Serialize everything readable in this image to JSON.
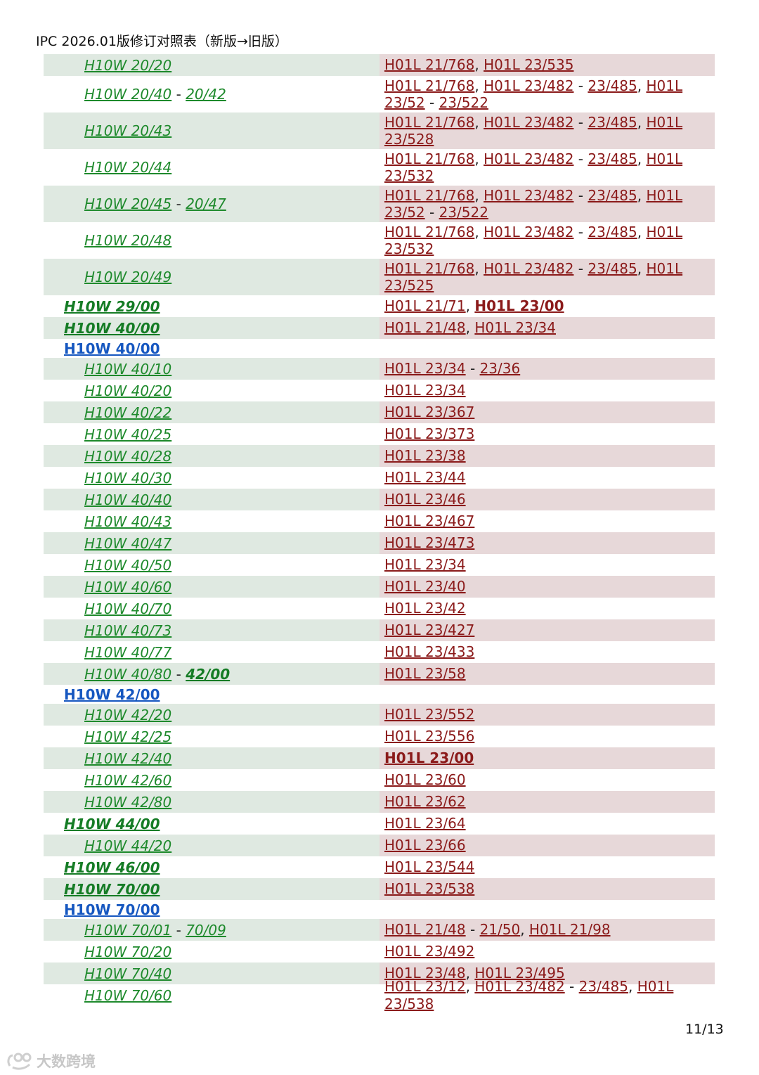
{
  "header": {
    "title": "IPC 2026.01版修订对照表（新版→旧版）"
  },
  "footer": {
    "page": "11/13",
    "watermark": "大数跨境"
  },
  "rows": [
    {
      "h": 31,
      "lv": 1,
      "new": [
        {
          "t": "H10W 20/20",
          "k": "n"
        }
      ],
      "old": [
        {
          "t": "H01L 21/768",
          "k": "l"
        },
        {
          "t": ", ",
          "k": "s"
        },
        {
          "t": "H01L 23/535",
          "k": "l"
        }
      ]
    },
    {
      "h": 52,
      "lv": 1,
      "new": [
        {
          "t": "H10W 20/40",
          "k": "n"
        },
        {
          "t": " - ",
          "k": "s"
        },
        {
          "t": "20/42",
          "k": "n"
        }
      ],
      "old": [
        {
          "t": "H01L 21/768",
          "k": "l"
        },
        {
          "t": ", ",
          "k": "s"
        },
        {
          "t": "H01L 23/482",
          "k": "l"
        },
        {
          "t": " - ",
          "k": "s"
        },
        {
          "t": "23/485",
          "k": "l"
        },
        {
          "t": ", ",
          "k": "s"
        },
        {
          "t": "H01L 23/52",
          "k": "l"
        },
        {
          "t": " - ",
          "k": "s"
        },
        {
          "t": "23/522",
          "k": "l"
        }
      ]
    },
    {
      "h": 52,
      "lv": 1,
      "new": [
        {
          "t": "H10W 20/43",
          "k": "n"
        }
      ],
      "old": [
        {
          "t": "H01L 21/768",
          "k": "l"
        },
        {
          "t": ", ",
          "k": "s"
        },
        {
          "t": "H01L 23/482",
          "k": "l"
        },
        {
          "t": " - ",
          "k": "s"
        },
        {
          "t": "23/485",
          "k": "l"
        },
        {
          "t": ", ",
          "k": "s"
        },
        {
          "t": "H01L 23/528",
          "k": "l"
        }
      ]
    },
    {
      "h": 52,
      "lv": 1,
      "new": [
        {
          "t": "H10W 20/44",
          "k": "n"
        }
      ],
      "old": [
        {
          "t": "H01L 21/768",
          "k": "l"
        },
        {
          "t": ", ",
          "k": "s"
        },
        {
          "t": "H01L 23/482",
          "k": "l"
        },
        {
          "t": " - ",
          "k": "s"
        },
        {
          "t": "23/485",
          "k": "l"
        },
        {
          "t": ", ",
          "k": "s"
        },
        {
          "t": "H01L 23/532",
          "k": "l"
        }
      ]
    },
    {
      "h": 52,
      "lv": 1,
      "new": [
        {
          "t": "H10W 20/45",
          "k": "n"
        },
        {
          "t": " - ",
          "k": "s"
        },
        {
          "t": "20/47",
          "k": "n"
        }
      ],
      "old": [
        {
          "t": "H01L 21/768",
          "k": "l"
        },
        {
          "t": ", ",
          "k": "s"
        },
        {
          "t": "H01L 23/482",
          "k": "l"
        },
        {
          "t": " - ",
          "k": "s"
        },
        {
          "t": "23/485",
          "k": "l"
        },
        {
          "t": ", ",
          "k": "s"
        },
        {
          "t": "H01L 23/52",
          "k": "l"
        },
        {
          "t": " - ",
          "k": "s"
        },
        {
          "t": "23/522",
          "k": "l"
        }
      ]
    },
    {
      "h": 52,
      "lv": 1,
      "new": [
        {
          "t": "H10W 20/48",
          "k": "n"
        }
      ],
      "old": [
        {
          "t": "H01L 21/768",
          "k": "l"
        },
        {
          "t": ", ",
          "k": "s"
        },
        {
          "t": "H01L 23/482",
          "k": "l"
        },
        {
          "t": " - ",
          "k": "s"
        },
        {
          "t": "23/485",
          "k": "l"
        },
        {
          "t": ", ",
          "k": "s"
        },
        {
          "t": "H01L 23/532",
          "k": "l"
        }
      ]
    },
    {
      "h": 52,
      "lv": 1,
      "new": [
        {
          "t": "H10W 20/49",
          "k": "n"
        }
      ],
      "old": [
        {
          "t": "H01L 21/768",
          "k": "l"
        },
        {
          "t": ", ",
          "k": "s"
        },
        {
          "t": "H01L 23/482",
          "k": "l"
        },
        {
          "t": " - ",
          "k": "s"
        },
        {
          "t": "23/485",
          "k": "l"
        },
        {
          "t": ", ",
          "k": "s"
        },
        {
          "t": "H01L 23/525",
          "k": "l"
        }
      ]
    },
    {
      "h": 31,
      "lv": 0,
      "new": [
        {
          "t": "H10W 29/00",
          "k": "nb"
        }
      ],
      "old": [
        {
          "t": "H01L 21/71",
          "k": "l"
        },
        {
          "t": ", ",
          "k": "s"
        },
        {
          "t": "H01L 23/00",
          "k": "lb"
        }
      ]
    },
    {
      "h": 31,
      "lv": 0,
      "new": [
        {
          "t": "H10W 40/00",
          "k": "nb"
        }
      ],
      "old": [
        {
          "t": "H01L 21/48",
          "k": "l"
        },
        {
          "t": ", ",
          "k": "s"
        },
        {
          "t": "H01L 23/34",
          "k": "l"
        }
      ]
    },
    {
      "h": 27,
      "lv": 0,
      "hdr": true,
      "new": [
        {
          "t": "H10W 40/00",
          "k": "h"
        }
      ],
      "old": []
    },
    {
      "h": 31,
      "lv": 1,
      "new": [
        {
          "t": "H10W 40/10",
          "k": "n"
        }
      ],
      "old": [
        {
          "t": "H01L 23/34",
          "k": "l"
        },
        {
          "t": " - ",
          "k": "s"
        },
        {
          "t": "23/36",
          "k": "l"
        }
      ]
    },
    {
      "h": 31,
      "lv": 1,
      "new": [
        {
          "t": "H10W 40/20",
          "k": "n"
        }
      ],
      "old": [
        {
          "t": "H01L 23/34",
          "k": "l"
        }
      ]
    },
    {
      "h": 31,
      "lv": 1,
      "new": [
        {
          "t": "H10W 40/22",
          "k": "n"
        }
      ],
      "old": [
        {
          "t": "H01L 23/367",
          "k": "l"
        }
      ]
    },
    {
      "h": 31,
      "lv": 1,
      "new": [
        {
          "t": "H10W 40/25",
          "k": "n"
        }
      ],
      "old": [
        {
          "t": "H01L 23/373",
          "k": "l"
        }
      ]
    },
    {
      "h": 31,
      "lv": 1,
      "new": [
        {
          "t": "H10W 40/28",
          "k": "n"
        }
      ],
      "old": [
        {
          "t": "H01L 23/38",
          "k": "l"
        }
      ]
    },
    {
      "h": 31,
      "lv": 1,
      "new": [
        {
          "t": "H10W 40/30",
          "k": "n"
        }
      ],
      "old": [
        {
          "t": "H01L 23/44",
          "k": "l"
        }
      ]
    },
    {
      "h": 31,
      "lv": 1,
      "new": [
        {
          "t": "H10W 40/40",
          "k": "n"
        }
      ],
      "old": [
        {
          "t": "H01L 23/46",
          "k": "l"
        }
      ]
    },
    {
      "h": 31,
      "lv": 1,
      "new": [
        {
          "t": "H10W 40/43",
          "k": "n"
        }
      ],
      "old": [
        {
          "t": "H01L 23/467",
          "k": "l"
        }
      ]
    },
    {
      "h": 31,
      "lv": 1,
      "new": [
        {
          "t": "H10W 40/47",
          "k": "n"
        }
      ],
      "old": [
        {
          "t": "H01L 23/473",
          "k": "l"
        }
      ]
    },
    {
      "h": 31,
      "lv": 1,
      "new": [
        {
          "t": "H10W 40/50",
          "k": "n"
        }
      ],
      "old": [
        {
          "t": "H01L 23/34",
          "k": "l"
        }
      ]
    },
    {
      "h": 31,
      "lv": 1,
      "new": [
        {
          "t": "H10W 40/60",
          "k": "n"
        }
      ],
      "old": [
        {
          "t": "H01L 23/40",
          "k": "l"
        }
      ]
    },
    {
      "h": 31,
      "lv": 1,
      "new": [
        {
          "t": "H10W 40/70",
          "k": "n"
        }
      ],
      "old": [
        {
          "t": "H01L 23/42",
          "k": "l"
        }
      ]
    },
    {
      "h": 31,
      "lv": 1,
      "new": [
        {
          "t": "H10W 40/73",
          "k": "n"
        }
      ],
      "old": [
        {
          "t": "H01L 23/427",
          "k": "l"
        }
      ]
    },
    {
      "h": 31,
      "lv": 1,
      "new": [
        {
          "t": "H10W 40/77",
          "k": "n"
        }
      ],
      "old": [
        {
          "t": "H01L 23/433",
          "k": "l"
        }
      ]
    },
    {
      "h": 31,
      "lv": 1,
      "new": [
        {
          "t": "H10W 40/80",
          "k": "n"
        },
        {
          "t": " - ",
          "k": "s"
        },
        {
          "t": "42/00",
          "k": "nb"
        }
      ],
      "old": [
        {
          "t": "H01L 23/58",
          "k": "l"
        }
      ]
    },
    {
      "h": 27,
      "lv": 0,
      "hdr": true,
      "new": [
        {
          "t": "H10W 42/00",
          "k": "h"
        }
      ],
      "old": []
    },
    {
      "h": 31,
      "lv": 1,
      "new": [
        {
          "t": "H10W 42/20",
          "k": "n"
        }
      ],
      "old": [
        {
          "t": "H01L 23/552",
          "k": "l"
        }
      ]
    },
    {
      "h": 31,
      "lv": 1,
      "new": [
        {
          "t": "H10W 42/25",
          "k": "n"
        }
      ],
      "old": [
        {
          "t": "H01L 23/556",
          "k": "l"
        }
      ]
    },
    {
      "h": 31,
      "lv": 1,
      "new": [
        {
          "t": "H10W 42/40",
          "k": "n"
        }
      ],
      "old": [
        {
          "t": "H01L 23/00",
          "k": "lb"
        }
      ]
    },
    {
      "h": 31,
      "lv": 1,
      "new": [
        {
          "t": "H10W 42/60",
          "k": "n"
        }
      ],
      "old": [
        {
          "t": "H01L 23/60",
          "k": "l"
        }
      ]
    },
    {
      "h": 31,
      "lv": 1,
      "new": [
        {
          "t": "H10W 42/80",
          "k": "n"
        }
      ],
      "old": [
        {
          "t": "H01L 23/62",
          "k": "l"
        }
      ]
    },
    {
      "h": 31,
      "lv": 0,
      "new": [
        {
          "t": "H10W 44/00",
          "k": "nb"
        }
      ],
      "old": [
        {
          "t": "H01L 23/64",
          "k": "l"
        }
      ]
    },
    {
      "h": 31,
      "lv": 1,
      "new": [
        {
          "t": "H10W 44/20",
          "k": "n"
        }
      ],
      "old": [
        {
          "t": "H01L 23/66",
          "k": "l"
        }
      ]
    },
    {
      "h": 31,
      "lv": 0,
      "new": [
        {
          "t": "H10W 46/00",
          "k": "nb"
        }
      ],
      "old": [
        {
          "t": "H01L 23/544",
          "k": "l"
        }
      ]
    },
    {
      "h": 31,
      "lv": 0,
      "new": [
        {
          "t": "H10W 70/00",
          "k": "nb"
        }
      ],
      "old": [
        {
          "t": "H01L 23/538",
          "k": "l"
        }
      ]
    },
    {
      "h": 27,
      "lv": 0,
      "hdr": true,
      "new": [
        {
          "t": "H10W 70/00",
          "k": "h"
        }
      ],
      "old": []
    },
    {
      "h": 31,
      "lv": 1,
      "new": [
        {
          "t": "H10W 70/01",
          "k": "n"
        },
        {
          "t": " - ",
          "k": "s"
        },
        {
          "t": "70/09",
          "k": "n"
        }
      ],
      "old": [
        {
          "t": "H01L 21/48",
          "k": "l"
        },
        {
          "t": " - ",
          "k": "s"
        },
        {
          "t": "21/50",
          "k": "l"
        },
        {
          "t": ", ",
          "k": "s"
        },
        {
          "t": "H01L 21/98",
          "k": "l"
        }
      ]
    },
    {
      "h": 31,
      "lv": 1,
      "new": [
        {
          "t": "H10W 70/20",
          "k": "n"
        }
      ],
      "old": [
        {
          "t": "H01L 23/492",
          "k": "l"
        }
      ]
    },
    {
      "h": 31,
      "lv": 1,
      "new": [
        {
          "t": "H10W 70/40",
          "k": "n"
        }
      ],
      "old": [
        {
          "t": "H01L 23/48",
          "k": "l"
        },
        {
          "t": ", ",
          "k": "s"
        },
        {
          "t": "H01L 23/495",
          "k": "l"
        }
      ]
    },
    {
      "h": 31,
      "lv": 1,
      "new": [
        {
          "t": "H10W 70/60",
          "k": "n"
        }
      ],
      "old": [
        {
          "t": "H01L 23/12",
          "k": "l"
        },
        {
          "t": ", ",
          "k": "s"
        },
        {
          "t": "H01L 23/482",
          "k": "l"
        },
        {
          "t": " - ",
          "k": "s"
        },
        {
          "t": "23/485",
          "k": "l"
        },
        {
          "t": ", ",
          "k": "s"
        },
        {
          "t": "H01L 23/538",
          "k": "l"
        }
      ]
    }
  ]
}
